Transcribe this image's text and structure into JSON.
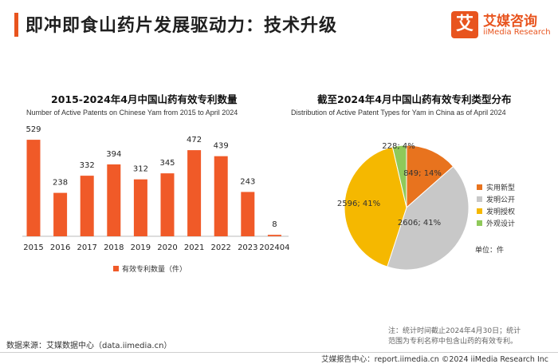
{
  "header": {
    "title": "即冲即食山药片发展驱动力：技术升级",
    "logo_mark": "艾",
    "logo_cn": "艾媒咨询",
    "logo_en": "iiMedia Research"
  },
  "colors": {
    "accent": "#e8541e",
    "bar": "#f05a28",
    "pie": [
      "#e8731e",
      "#c8c8c8",
      "#f5b800",
      "#8fc95a"
    ]
  },
  "chart_data": [
    {
      "type": "bar",
      "title": "2015-2024年4月中国山药有效专利数量",
      "subtitle": "Number of Active Patents on Chinese Yam from 2015 to April 2024",
      "categories": [
        "2015",
        "2016",
        "2017",
        "2018",
        "2019",
        "2020",
        "2021",
        "2022",
        "2023",
        "202404"
      ],
      "values": [
        529,
        238,
        332,
        394,
        312,
        345,
        472,
        439,
        243,
        8
      ],
      "legend": "有效专利数量（件）",
      "ylim": [
        0,
        560
      ]
    },
    {
      "type": "pie",
      "title": "截至2024年4月中国山药有效专利类型分布",
      "subtitle": "Distribution of Active Patent Types for Yam in China as of April 2024",
      "slices": [
        {
          "label": "实用新型",
          "value": 849,
          "percent": "14%",
          "text": "849; 14%"
        },
        {
          "label": "发明公开",
          "value": 2606,
          "percent": "41%",
          "text": "2606; 41%"
        },
        {
          "label": "发明授权",
          "value": 2596,
          "percent": "41%",
          "text": "2596; 41%"
        },
        {
          "label": "外观设计",
          "value": 228,
          "percent": "4%",
          "text": "228; 4%"
        }
      ],
      "unit": "单位：件"
    }
  ],
  "footer": {
    "source": "数据来源：艾媒数据中心（data.iimedia.cn）",
    "note_line1": "注：统计时间截止2024年4月30日；统计",
    "note_line2": "范围为专利名称中包含山药的有效专利。",
    "bottom": "艾媒报告中心：report.iimedia.cn   ©2024  iiMedia Research  Inc"
  }
}
